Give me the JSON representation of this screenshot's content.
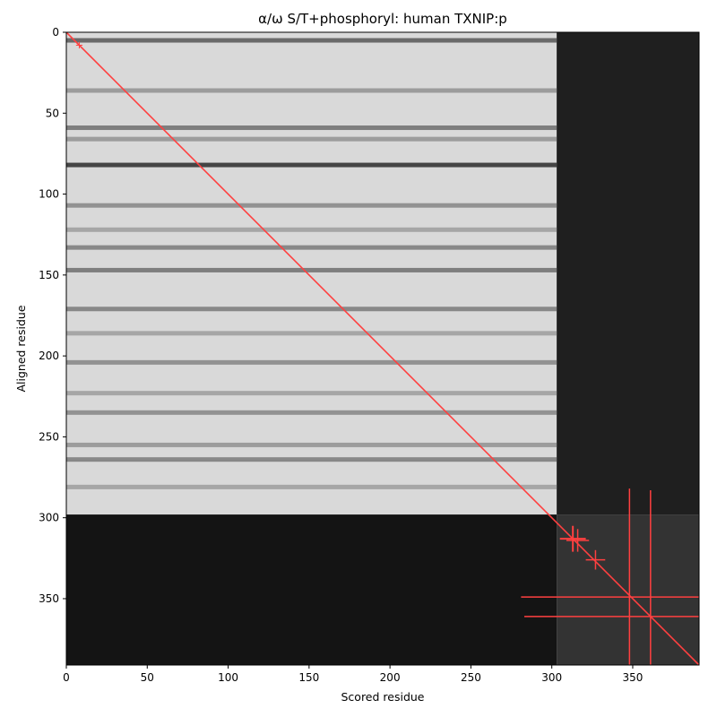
{
  "chart_data": {
    "type": "heatmap",
    "title": "α/ω S/T+phosphoryl: human TXNIP:p",
    "xlabel": "Scored residue",
    "ylabel": "Aligned residue",
    "xlim": [
      0,
      391
    ],
    "ylim": [
      391,
      0
    ],
    "xticks": [
      0,
      50,
      100,
      150,
      200,
      250,
      300,
      350
    ],
    "yticks": [
      0,
      50,
      100,
      150,
      200,
      250,
      300,
      350
    ],
    "colormap": "greys (white = high, black = low)",
    "blocks": [
      {
        "x": [
          0,
          303
        ],
        "y": [
          0,
          298
        ],
        "level": 0.85
      },
      {
        "x": [
          303,
          391
        ],
        "y": [
          0,
          298
        ],
        "level": 0.12
      },
      {
        "x": [
          0,
          303
        ],
        "y": [
          298,
          391
        ],
        "level": 0.08
      },
      {
        "x": [
          303,
          391
        ],
        "y": [
          298,
          391
        ],
        "level": 0.2
      }
    ],
    "dark_rows": [
      {
        "y": 5,
        "level": 0.3
      },
      {
        "y": 36,
        "level": 0.55
      },
      {
        "y": 59,
        "level": 0.4
      },
      {
        "y": 66,
        "level": 0.55
      },
      {
        "y": 82,
        "level": 0.12
      },
      {
        "y": 107,
        "level": 0.5
      },
      {
        "y": 122,
        "level": 0.6
      },
      {
        "y": 133,
        "level": 0.45
      },
      {
        "y": 147,
        "level": 0.4
      },
      {
        "y": 171,
        "level": 0.45
      },
      {
        "y": 186,
        "level": 0.6
      },
      {
        "y": 204,
        "level": 0.5
      },
      {
        "y": 223,
        "level": 0.6
      },
      {
        "y": 235,
        "level": 0.5
      },
      {
        "y": 255,
        "level": 0.55
      },
      {
        "y": 264,
        "level": 0.45
      },
      {
        "y": 281,
        "level": 0.6
      }
    ],
    "diagonal": {
      "from": [
        0,
        0
      ],
      "to": [
        391,
        391
      ],
      "color": "#ff4040"
    },
    "markers": [
      {
        "x": 313,
        "y": 313,
        "arm": 8,
        "stroke": 2
      },
      {
        "x": 316,
        "y": 314,
        "arm": 7,
        "stroke": 1.5
      },
      {
        "x": 327,
        "y": 326,
        "arm": 6,
        "stroke": 1.5
      },
      {
        "x": 348,
        "y": 349,
        "arm": 67,
        "stroke": 1.5
      },
      {
        "x": 361,
        "y": 361,
        "arm": 78,
        "stroke": 1.5
      },
      {
        "x": 8,
        "y": 8,
        "arm": 2,
        "stroke": 1
      }
    ],
    "marker_color": "#ff4040"
  }
}
